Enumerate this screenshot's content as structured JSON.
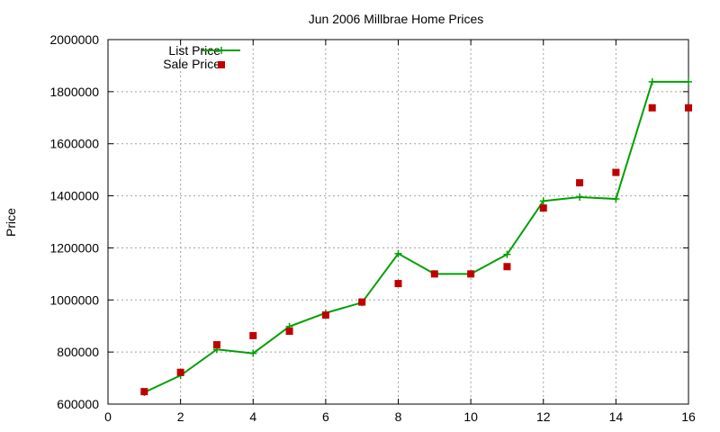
{
  "chart_data": {
    "type": "line",
    "title": "Jun 2006 Millbrae Home Prices",
    "xlabel": "",
    "ylabel": "Price",
    "xlim": [
      0,
      16
    ],
    "ylim": [
      600000,
      2000000
    ],
    "xticks": [
      0,
      2,
      4,
      6,
      8,
      10,
      12,
      14,
      16
    ],
    "yticks": [
      600000,
      800000,
      1000000,
      1200000,
      1400000,
      1600000,
      1800000,
      2000000
    ],
    "grid": true,
    "legend": "top-left",
    "series": [
      {
        "name": "List Price",
        "style": "line+cross",
        "color": "#00a000",
        "x": [
          1,
          2,
          3,
          4,
          5,
          6,
          7,
          8,
          9,
          10,
          11,
          12,
          13,
          14,
          15,
          16
        ],
        "y": [
          645000,
          710000,
          810000,
          795000,
          898000,
          950000,
          990000,
          1178000,
          1100000,
          1100000,
          1175000,
          1380000,
          1395000,
          1388000,
          1838000,
          1838000
        ]
      },
      {
        "name": "Sale Price",
        "style": "square",
        "color": "#c00000",
        "x": [
          1,
          2,
          3,
          4,
          5,
          6,
          7,
          8,
          9,
          10,
          11,
          12,
          13,
          14,
          15,
          16
        ],
        "y": [
          648000,
          722000,
          828000,
          863000,
          880000,
          942000,
          992000,
          1063000,
          1100000,
          1100000,
          1128000,
          1353000,
          1450000,
          1490000,
          1738000,
          1738000
        ]
      }
    ]
  }
}
